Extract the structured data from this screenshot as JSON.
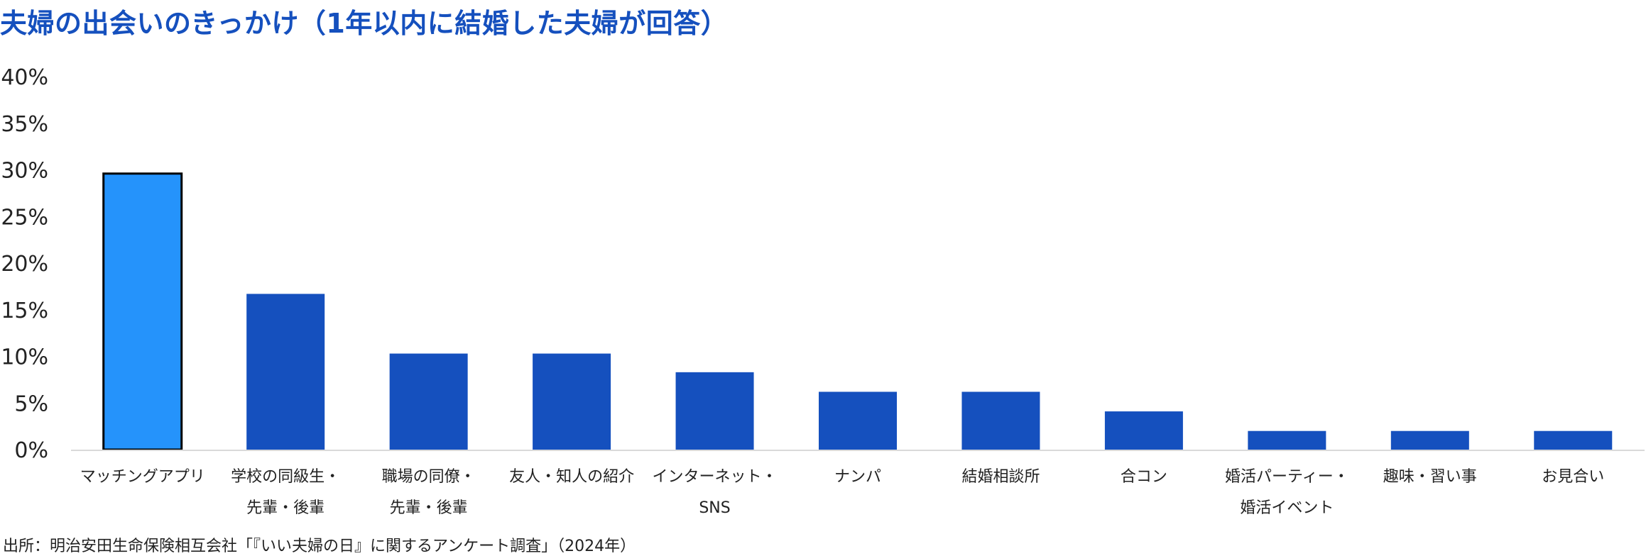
{
  "title": "夫婦の出会いのきっかけ（1年以内に結婚した夫婦が回答）",
  "footer": "出所：明治安田生命保険相互会社「『いい夫婦の日』に関するアンケート調査」（2024年）",
  "colors": {
    "title": "#1550be",
    "bar": "#1550be",
    "highlight": "#2593fb",
    "axis": "#d9d9d9"
  },
  "chart_data": {
    "type": "bar",
    "title": "夫婦の出会いのきっかけ（1年以内に結婚した夫婦が回答）",
    "xlabel": "",
    "ylabel": "",
    "ylim": [
      0,
      40
    ],
    "yticks": [
      "0%",
      "5%",
      "10%",
      "15%",
      "20%",
      "25%",
      "30%",
      "35%",
      "40%"
    ],
    "grid": false,
    "legend": "none",
    "categories": [
      [
        "マッチングアプリ"
      ],
      [
        "学校の同級生・",
        "先輩・後輩"
      ],
      [
        "職場の同僚・",
        "先輩・後輩"
      ],
      [
        "友人・知人の紹介"
      ],
      [
        "インターネット・",
        "SNS"
      ],
      [
        "ナンパ"
      ],
      [
        "結婚相談所"
      ],
      [
        "合コン"
      ],
      [
        "婚活パーティー・",
        "婚活イベント"
      ],
      [
        "趣味・習い事"
      ],
      [
        "お見合い"
      ]
    ],
    "values": [
      29.6,
      16.7,
      10.3,
      10.3,
      8.3,
      6.2,
      6.2,
      4.1,
      2.0,
      2.0,
      2.0
    ],
    "highlight_index": 0
  }
}
